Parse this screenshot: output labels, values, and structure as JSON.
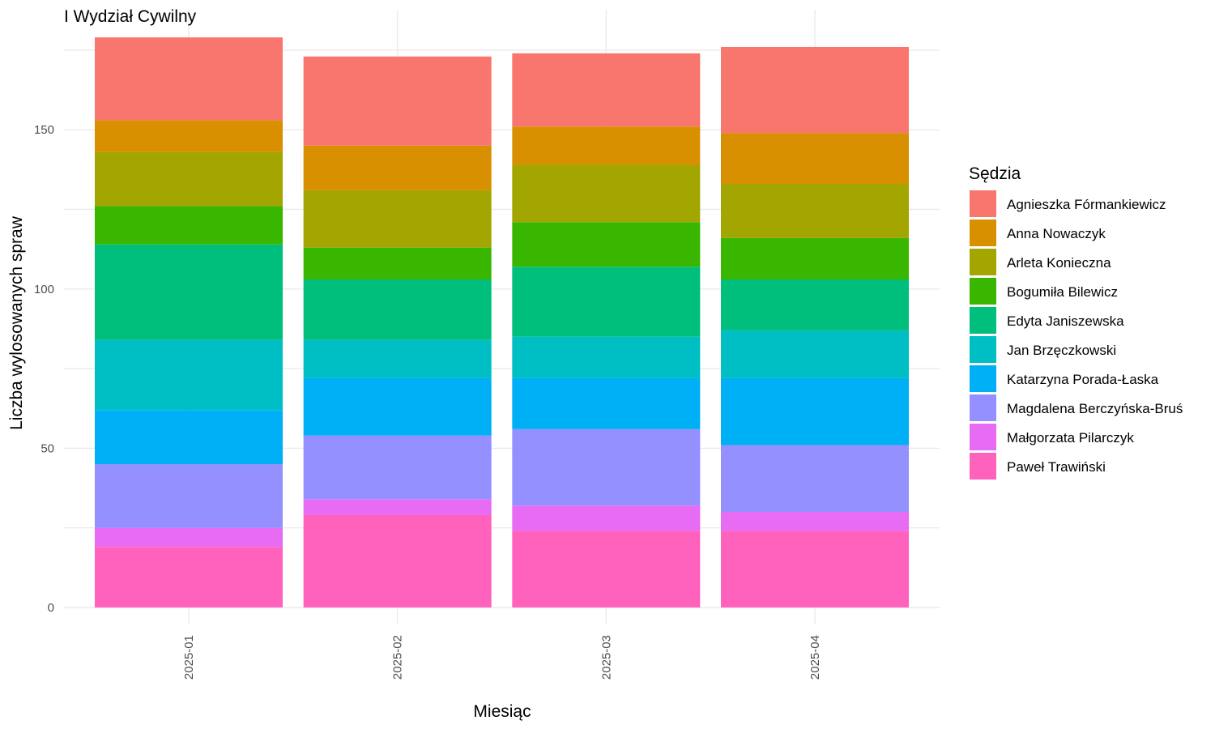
{
  "chart_data": {
    "type": "bar",
    "stacked": true,
    "title": "I Wydział Cywilny",
    "xlabel": "Miesiąc",
    "ylabel": "Liczba wylosowanych spraw",
    "ylim": [
      0,
      180
    ],
    "yticks": [
      0,
      50,
      100,
      150
    ],
    "grid": true,
    "legend_title": "Sędzia",
    "legend_position": "right",
    "categories": [
      "2025-01",
      "2025-02",
      "2025-03",
      "2025-04"
    ],
    "series": [
      {
        "name": "Agnieszka Fórmankiewicz",
        "color": "#F8766D",
        "values": [
          26,
          28,
          23,
          27
        ]
      },
      {
        "name": "Anna Nowaczyk",
        "color": "#D89000",
        "values": [
          10,
          14,
          12,
          16
        ]
      },
      {
        "name": "Arleta Konieczna",
        "color": "#A3A500",
        "values": [
          17,
          18,
          18,
          17
        ]
      },
      {
        "name": "Bogumiła Bilewicz",
        "color": "#39B600",
        "values": [
          12,
          10,
          14,
          13
        ]
      },
      {
        "name": "Edyta Janiszewska",
        "color": "#00BF7D",
        "values": [
          30,
          19,
          22,
          16
        ]
      },
      {
        "name": "Jan Brzęczkowski",
        "color": "#00BFC4",
        "values": [
          22,
          12,
          13,
          15
        ]
      },
      {
        "name": "Katarzyna Porada-Łaska",
        "color": "#00B0F6",
        "values": [
          17,
          18,
          16,
          21
        ]
      },
      {
        "name": "Magdalena Berczyńska-Bruś",
        "color": "#9590FF",
        "values": [
          20,
          20,
          24,
          21
        ]
      },
      {
        "name": "Małgorzata Pilarczyk",
        "color": "#E76BF3",
        "values": [
          6,
          5,
          8,
          6
        ]
      },
      {
        "name": "Paweł Trawiński",
        "color": "#FF62BC",
        "values": [
          19,
          29,
          24,
          24
        ]
      }
    ]
  }
}
